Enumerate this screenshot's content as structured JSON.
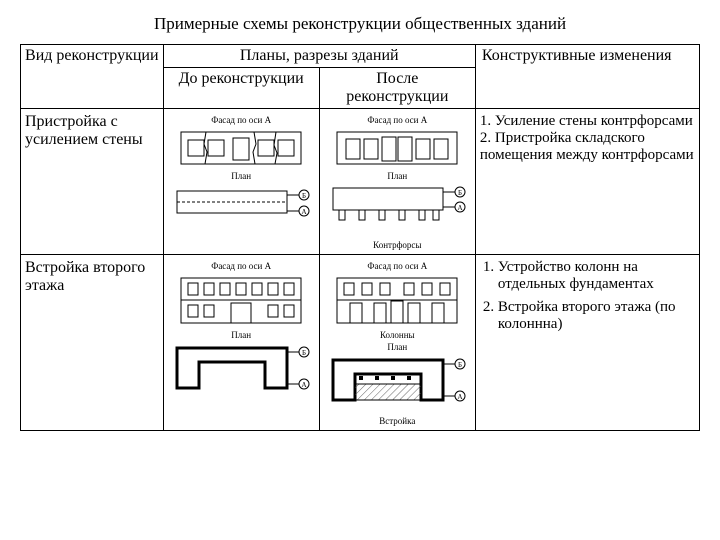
{
  "title": "Примерные схемы реконструкции общественных зданий",
  "headers": {
    "type": "Вид реконструкции",
    "plans": "Планы, разрезы зданий",
    "before": "До реконструкции",
    "after": "После реконструкции",
    "changes": "Конструктивные изменения"
  },
  "rows": [
    {
      "type_label": "Пристройка с усилением стены",
      "before": {
        "facade_label": "Фасад по оси А",
        "plan_label": "План",
        "axis_labels": [
          "Б",
          "А"
        ]
      },
      "after": {
        "facade_label": "Фасад по оси А",
        "plan_label": "План",
        "buttress_label": "Контрфорсы",
        "axis_labels": [
          "Б",
          "А"
        ]
      },
      "changes_html": "1. Усиление стены контрфорсами<br>2. Пристройка складского помещения между контрфорсами"
    },
    {
      "type_label": "Встройка второго этажа",
      "before": {
        "facade_label": "Фасад по оси А",
        "plan_label": "План",
        "axis_labels": [
          "Б",
          "А"
        ]
      },
      "after": {
        "facade_label": "Фасад по оси А",
        "columns_label": "Колонны",
        "plan_label": "План",
        "insert_label": "Встройка",
        "axis_labels": [
          "Б",
          "А"
        ]
      },
      "changes_list": [
        "Устройство колонн на отдельных фундаментах",
        "Встройка второго этажа (по колоннна)"
      ]
    }
  ],
  "style": {
    "stroke": "#000000",
    "stroke_width": 1,
    "hatch_color": "#888888",
    "bg": "#ffffff",
    "font_small": 9,
    "font_title": 17,
    "font_body": 16
  }
}
